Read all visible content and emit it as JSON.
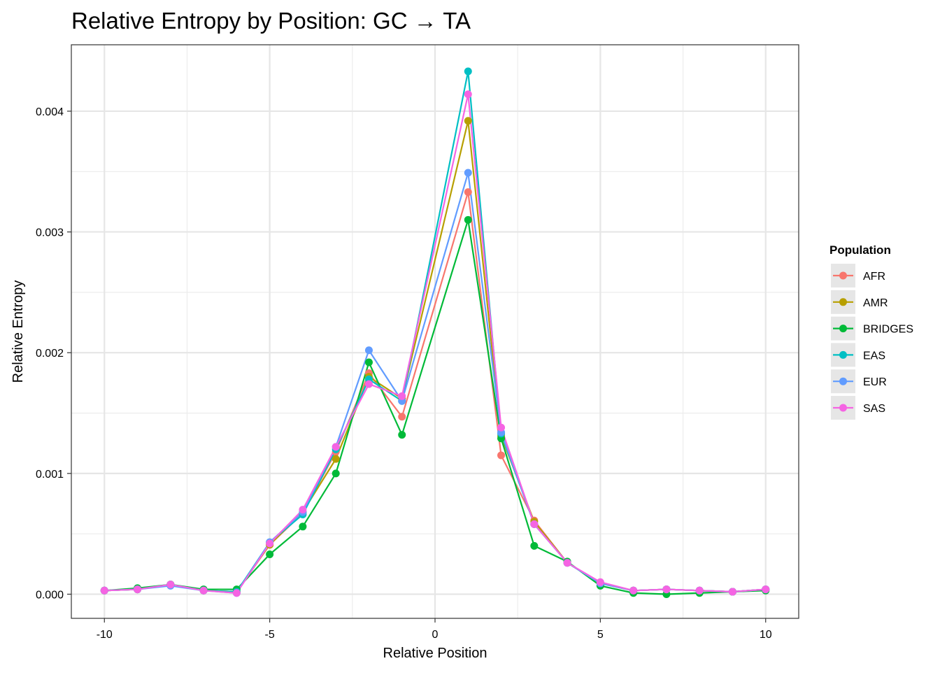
{
  "chart_data": {
    "type": "line",
    "title": "Relative Entropy by Position: GC → TA",
    "xlabel": "Relative Position",
    "ylabel": "Relative Entropy",
    "xlim": [
      -11,
      11
    ],
    "ylim": [
      -0.0002,
      0.00455
    ],
    "x_ticks": [
      -10,
      -5,
      0,
      5,
      10
    ],
    "x_tick_labels": [
      "-10",
      "-5",
      "0",
      "5",
      "10"
    ],
    "y_ticks": [
      0,
      0.001,
      0.002,
      0.003,
      0.004
    ],
    "y_tick_labels": [
      "0.000",
      "0.001",
      "0.002",
      "0.003",
      "0.004"
    ],
    "grid": true,
    "legend_title": "Population",
    "legend_position": "right",
    "x": [
      -10,
      -9,
      -8,
      -7,
      -6,
      -5,
      -4,
      -3,
      -2,
      -1,
      1,
      2,
      3,
      4,
      5,
      6,
      7,
      8,
      9,
      10
    ],
    "series": [
      {
        "name": "AFR",
        "color": "#F8766D",
        "values": [
          3e-05,
          4e-05,
          8e-05,
          3e-05,
          2e-05,
          0.00041,
          0.00067,
          0.00118,
          0.00183,
          0.00147,
          0.00333,
          0.00115,
          0.00061,
          0.00026,
          9e-05,
          3e-05,
          4e-05,
          3e-05,
          2e-05,
          4e-05
        ]
      },
      {
        "name": "AMR",
        "color": "#B79F00",
        "values": [
          3e-05,
          4e-05,
          8e-05,
          3e-05,
          2e-05,
          0.00041,
          0.00068,
          0.00112,
          0.0018,
          0.00162,
          0.00392,
          0.00131,
          0.0006,
          0.00026,
          9e-05,
          3e-05,
          4e-05,
          3e-05,
          2e-05,
          4e-05
        ]
      },
      {
        "name": "BRIDGES",
        "color": "#00BA38",
        "values": [
          3e-05,
          5e-05,
          8e-05,
          4e-05,
          4e-05,
          0.00033,
          0.00056,
          0.001,
          0.00192,
          0.00132,
          0.0031,
          0.00129,
          0.0004,
          0.00027,
          7e-05,
          1e-05,
          0.0,
          1e-05,
          2e-05,
          3e-05
        ]
      },
      {
        "name": "EAS",
        "color": "#00BFC4",
        "values": [
          3e-05,
          4e-05,
          8e-05,
          3e-05,
          2e-05,
          0.00043,
          0.00066,
          0.0012,
          0.00178,
          0.0016,
          0.00433,
          0.00133,
          0.00058,
          0.00026,
          9e-05,
          3e-05,
          4e-05,
          3e-05,
          2e-05,
          4e-05
        ]
      },
      {
        "name": "EUR",
        "color": "#619CFF",
        "values": [
          3e-05,
          4e-05,
          7e-05,
          3e-05,
          1e-05,
          0.00043,
          0.00068,
          0.00122,
          0.00202,
          0.0016,
          0.00349,
          0.00134,
          0.00058,
          0.00026,
          9e-05,
          3e-05,
          4e-05,
          3e-05,
          2e-05,
          4e-05
        ]
      },
      {
        "name": "SAS",
        "color": "#F564E3",
        "values": [
          3e-05,
          4e-05,
          8e-05,
          3e-05,
          1e-05,
          0.00042,
          0.0007,
          0.00122,
          0.00174,
          0.00164,
          0.00414,
          0.00138,
          0.00058,
          0.00026,
          0.0001,
          3e-05,
          4e-05,
          3e-05,
          2e-05,
          4e-05
        ]
      }
    ]
  }
}
